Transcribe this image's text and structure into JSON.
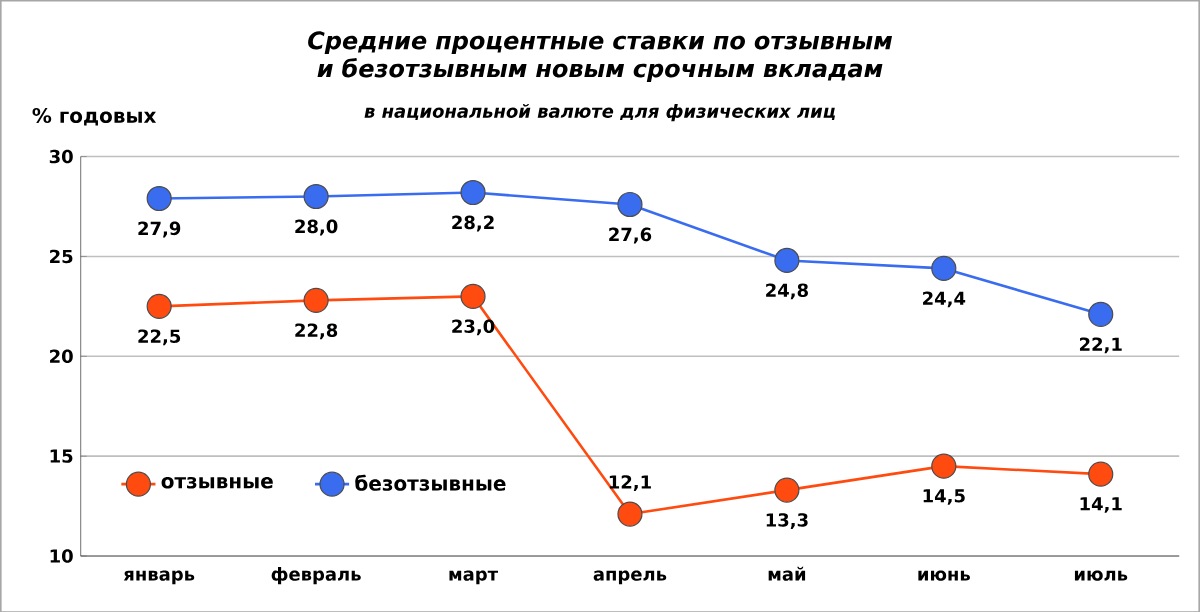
{
  "chart_data": {
    "type": "line",
    "title": "Средние процентные ставки по отзывным и безотзывным новым срочным вкладам",
    "subtitle": "в национальной валюте для физических лиц",
    "ylabel": "% годовых",
    "categories": [
      "январь",
      "февраль",
      "март",
      "апрель",
      "май",
      "июнь",
      "июль"
    ],
    "series": [
      {
        "name": "отзывные",
        "color": "#ff4a10",
        "values": [
          22.5,
          22.8,
          23.0,
          12.1,
          13.3,
          14.5,
          14.1
        ],
        "value_labels": [
          "22,5",
          "22,8",
          "23,0",
          "12,1",
          "13,3",
          "14,5",
          "14,1"
        ]
      },
      {
        "name": "безотзывные",
        "color": "#3a6cf0",
        "values": [
          27.9,
          28.0,
          28.2,
          27.6,
          24.8,
          24.4,
          22.1
        ],
        "value_labels": [
          "27,9",
          "28,0",
          "28,2",
          "27,6",
          "24,8",
          "24,4",
          "22,1"
        ]
      }
    ],
    "ylim": [
      10,
      30
    ],
    "yticks": [
      10,
      15,
      20,
      25,
      30
    ],
    "grid": "y",
    "legend": "bottom left",
    "marker": "circle",
    "line_style": "solid"
  }
}
